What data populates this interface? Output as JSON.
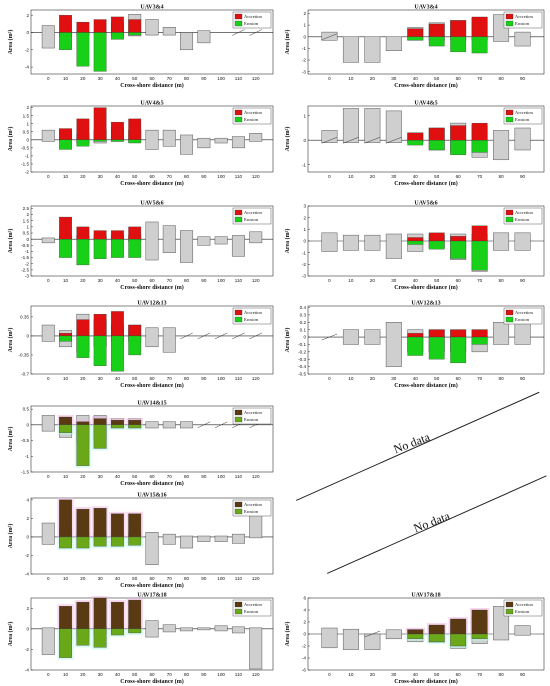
{
  "colors": {
    "accretion": "#e01010",
    "erosion": "#19d019",
    "accretion_dark": "#5a3a12",
    "erosion_dark": "#6aa81a",
    "gray_bar": "#cfcfcf",
    "edge": "#555555",
    "halo": "#f2b8e2",
    "halo2": "#b8f5e8"
  },
  "axis_labels": {
    "y": "Area (m²)",
    "x": "Cross-shore distance (m)"
  },
  "legend": {
    "accretion": "Accretion",
    "erosion": "Erosion"
  },
  "no_data": {
    "label": "No data"
  },
  "chart_data": [
    {
      "type": "bar",
      "title": "UAV3&4",
      "categories": [
        "0",
        "10",
        "20",
        "30",
        "40",
        "50",
        "60",
        "70",
        "80",
        "90",
        "100",
        "110",
        "120"
      ],
      "yticks": [
        -4,
        -2,
        0,
        2
      ],
      "ylim": [
        -4.8,
        2.6
      ],
      "legend_style": "bright",
      "gray": [
        [
          -1.8,
          0.8
        ],
        [
          -0.5,
          0.1
        ],
        [
          -0.3,
          0.2
        ],
        [
          -0.1,
          0.0
        ],
        [
          -0.4,
          1.1
        ],
        [
          -0.4,
          2.1
        ],
        [
          -0.3,
          1.5
        ],
        [
          -0.3,
          0.6
        ],
        [
          -2.0,
          0.0
        ],
        [
          -1.2,
          0.2
        ],
        null,
        null,
        null
      ],
      "accretion": [
        null,
        2.0,
        1.2,
        1.5,
        1.8,
        1.5,
        null,
        null,
        null,
        null,
        null,
        null,
        null
      ],
      "erosion": [
        null,
        -2.0,
        -3.9,
        -4.5,
        -0.8,
        -0.3,
        null,
        null,
        null,
        null,
        null,
        null,
        null
      ],
      "slashes": [
        11,
        12
      ]
    },
    {
      "type": "bar",
      "title": "UAV3&4",
      "categories": [
        "0",
        "10",
        "20",
        "30",
        "40",
        "50",
        "60",
        "70",
        "80",
        "90"
      ],
      "yticks": [
        -3,
        -2,
        -1,
        0,
        1,
        2
      ],
      "ylim": [
        -3.2,
        2.3
      ],
      "legend_style": "bright",
      "gray": [
        [
          -0.3,
          0.4
        ],
        [
          -2.2,
          0.0
        ],
        [
          -2.2,
          0.0
        ],
        [
          -1.2,
          0.0
        ],
        [
          -0.3,
          0.8
        ],
        [
          -0.3,
          1.2
        ],
        [
          -0.3,
          1.4
        ],
        [
          -0.3,
          1.6
        ],
        [
          -0.4,
          1.9
        ],
        [
          -0.8,
          0.4
        ]
      ],
      "accretion": [
        null,
        null,
        null,
        null,
        0.7,
        1.1,
        1.4,
        1.7,
        null,
        null
      ],
      "erosion": [
        null,
        null,
        null,
        null,
        -0.3,
        -0.8,
        -1.3,
        -1.4,
        null,
        null
      ],
      "slashes": [
        0
      ]
    },
    {
      "type": "bar",
      "title": "UAV4&5",
      "categories": [
        "0",
        "10",
        "20",
        "30",
        "40",
        "50",
        "60",
        "70",
        "80",
        "90",
        "100",
        "110",
        "120"
      ],
      "yticks": [
        -2,
        -1.5,
        -1,
        -0.5,
        0,
        0.5,
        1,
        1.5,
        2
      ],
      "ylim": [
        -2,
        2.1
      ],
      "legend_style": "bright",
      "gray": [
        [
          -0.1,
          0.6
        ],
        [
          -0.1,
          0.6
        ],
        [
          -0.2,
          0.4
        ],
        [
          -0.2,
          0.6
        ],
        [
          -0.1,
          0.8
        ],
        [
          -0.1,
          0.6
        ],
        [
          -0.6,
          0.6
        ],
        [
          -0.4,
          0.6
        ],
        [
          -0.9,
          0.3
        ],
        [
          -0.5,
          0.1
        ],
        [
          -0.2,
          0.1
        ],
        [
          -0.5,
          0.2
        ],
        [
          -0.1,
          0.4
        ]
      ],
      "accretion": [
        null,
        0.7,
        1.3,
        2.0,
        1.1,
        1.3,
        null,
        null,
        null,
        null,
        null,
        null,
        null
      ],
      "erosion": [
        null,
        -0.6,
        -0.4,
        -0.1,
        -0.1,
        -0.2,
        null,
        null,
        null,
        null,
        null,
        null,
        null
      ],
      "slashes": []
    },
    {
      "type": "bar",
      "title": "UAV4&5",
      "categories": [
        "0",
        "10",
        "20",
        "30",
        "40",
        "50",
        "60",
        "70",
        "80",
        "90"
      ],
      "yticks": [
        -1,
        0,
        1
      ],
      "ylim": [
        -1.3,
        1.4
      ],
      "legend_style": "bright",
      "gray": [
        [
          -0.1,
          0.4
        ],
        [
          -0.1,
          1.3
        ],
        [
          -0.1,
          1.3
        ],
        [
          -0.1,
          1.2
        ],
        [
          -0.1,
          0.3
        ],
        [
          -0.4,
          0.5
        ],
        [
          -0.5,
          0.7
        ],
        [
          -0.7,
          0.6
        ],
        [
          -0.8,
          0.4
        ],
        [
          -0.4,
          0.5
        ]
      ],
      "accretion": [
        null,
        null,
        null,
        null,
        0.3,
        0.5,
        0.6,
        0.7,
        null,
        null
      ],
      "erosion": [
        null,
        null,
        null,
        null,
        -0.2,
        -0.4,
        -0.6,
        -0.5,
        null,
        null
      ],
      "slashes": [
        0,
        1,
        2,
        3
      ]
    },
    {
      "type": "bar",
      "title": "UAV5&6",
      "categories": [
        "0",
        "10",
        "20",
        "30",
        "40",
        "50",
        "60",
        "70",
        "80",
        "90",
        "100",
        "110",
        "120"
      ],
      "yticks": [
        -3,
        -2.5,
        -2,
        -1.5,
        -1,
        -0.5,
        0,
        0.5,
        1,
        1.5,
        2,
        2.5
      ],
      "ylim": [
        -3,
        2.7
      ],
      "legend_style": "bright",
      "gray": [
        [
          -0.3,
          0.1
        ],
        [
          -0.1,
          0.3
        ],
        [
          -0.1,
          0.3
        ],
        [
          -0.1,
          0.3
        ],
        [
          -0.1,
          0.3
        ],
        [
          -0.2,
          0.3
        ],
        [
          -1.7,
          1.4
        ],
        [
          -1.1,
          1.1
        ],
        [
          -1.9,
          0.7
        ],
        [
          -0.5,
          0.2
        ],
        [
          -0.4,
          0.2
        ],
        [
          -1.4,
          0.3
        ],
        [
          -0.3,
          0.6
        ]
      ],
      "accretion": [
        null,
        1.8,
        1.0,
        0.7,
        0.7,
        1.0,
        null,
        null,
        null,
        null,
        null,
        null,
        null
      ],
      "erosion": [
        null,
        -1.5,
        -2.1,
        -1.6,
        -1.5,
        -1.5,
        null,
        null,
        null,
        null,
        null,
        null,
        null
      ],
      "slashes": []
    },
    {
      "type": "bar",
      "title": "UAV5&6",
      "categories": [
        "0",
        "10",
        "20",
        "30",
        "40",
        "50",
        "60",
        "70",
        "80",
        "90"
      ],
      "yticks": [
        -3,
        -2,
        -1,
        0,
        1,
        2,
        3
      ],
      "ylim": [
        -3,
        3
      ],
      "legend_style": "bright",
      "gray": [
        [
          -0.9,
          0.7
        ],
        [
          -0.8,
          0.5
        ],
        [
          -0.8,
          0.5
        ],
        [
          -1.5,
          0.6
        ],
        [
          -0.9,
          0.6
        ],
        [
          -0.6,
          0.5
        ],
        [
          -1.6,
          0.6
        ],
        [
          -2.6,
          0.6
        ],
        [
          -0.8,
          0.7
        ],
        [
          -0.8,
          0.7
        ]
      ],
      "accretion": [
        null,
        null,
        null,
        null,
        0.3,
        0.7,
        0.4,
        1.3,
        null,
        null
      ],
      "erosion": [
        null,
        null,
        null,
        null,
        -0.3,
        -0.7,
        -1.5,
        -2.5,
        null,
        null
      ],
      "slashes": []
    },
    {
      "type": "bar",
      "title": "UAV12&13",
      "categories": [
        "0",
        "10",
        "20",
        "30",
        "40",
        "50",
        "60",
        "70",
        "80",
        "90",
        "100",
        "110",
        "120"
      ],
      "yticks": [
        -0.7,
        -0.35,
        0,
        0.35
      ],
      "ylim": [
        -0.7,
        0.55
      ],
      "legend_style": "bright",
      "gray": [
        [
          -0.1,
          0.2
        ],
        [
          -0.2,
          0.1
        ],
        [
          -0.3,
          0.4
        ],
        [
          -0.2,
          0.3
        ],
        [
          -0.1,
          0.2
        ],
        [
          -0.1,
          0.2
        ],
        [
          -0.2,
          0.15
        ],
        [
          -0.3,
          0.15
        ],
        null,
        null,
        null,
        null,
        null
      ],
      "accretion": [
        null,
        0.05,
        0.3,
        0.4,
        0.45,
        0.2,
        null,
        null,
        null,
        null,
        null,
        null,
        null
      ],
      "erosion": [
        null,
        -0.1,
        -0.4,
        -0.55,
        -0.65,
        -0.35,
        null,
        null,
        null,
        null,
        null,
        null,
        null
      ],
      "slashes": [
        8,
        9,
        10,
        11,
        12
      ]
    },
    {
      "type": "bar",
      "title": "UAV12&13",
      "categories": [
        "0",
        "10",
        "20",
        "30",
        "40",
        "50",
        "60",
        "70",
        "80",
        "90"
      ],
      "yticks": [
        -0.5,
        -0.4,
        -0.3,
        -0.2,
        -0.1,
        0,
        0.1,
        0.2,
        0.3,
        0.4
      ],
      "ylim": [
        -0.5,
        0.42
      ],
      "legend_style": "bright",
      "gray": [
        null,
        [
          -0.1,
          0.1
        ],
        [
          -0.1,
          0.1
        ],
        [
          -0.4,
          0.2
        ],
        [
          -0.2,
          0.1
        ],
        [
          -0.2,
          0.1
        ],
        [
          -0.2,
          0.1
        ],
        [
          -0.2,
          0.1
        ],
        [
          -0.1,
          0.2
        ],
        [
          -0.1,
          0.2
        ]
      ],
      "accretion": [
        null,
        null,
        null,
        null,
        0.05,
        0.1,
        0.1,
        0.1,
        null,
        null
      ],
      "erosion": [
        null,
        null,
        null,
        null,
        -0.25,
        -0.3,
        -0.35,
        -0.1,
        null,
        null
      ],
      "slashes": [
        0
      ]
    },
    {
      "type": "bar",
      "title": "UAV14&15",
      "categories": [
        "0",
        "10",
        "20",
        "30",
        "40",
        "50",
        "60",
        "70",
        "80",
        "90",
        "100",
        "110",
        "120"
      ],
      "yticks": [
        -1.5,
        -1,
        -0.5,
        0,
        0.5
      ],
      "ylim": [
        -1.5,
        0.6
      ],
      "legend_style": "dark",
      "gray": [
        [
          -0.2,
          0.3
        ],
        [
          -0.4,
          0.2
        ],
        [
          -0.6,
          0.3
        ],
        [
          -0.5,
          0.3
        ],
        [
          -0.1,
          0.2
        ],
        [
          -0.1,
          0.2
        ],
        [
          -0.1,
          0.1
        ],
        [
          -0.1,
          0.1
        ],
        [
          -0.1,
          0.1
        ],
        null,
        null,
        null,
        null
      ],
      "accretion": [
        null,
        0.25,
        0.1,
        0.2,
        0.15,
        0.15,
        null,
        null,
        null,
        null,
        null,
        null,
        null
      ],
      "erosion": [
        null,
        -0.25,
        -1.3,
        -0.75,
        -0.1,
        -0.1,
        null,
        null,
        null,
        null,
        null,
        null,
        null
      ],
      "slashes": [
        9,
        10,
        11,
        12
      ]
    },
    {
      "type": "bar",
      "title": "UAV15&16",
      "categories": [
        "0",
        "10",
        "20",
        "30",
        "40",
        "50",
        "60",
        "70",
        "80",
        "90",
        "100",
        "110",
        "120"
      ],
      "yticks": [
        -4,
        -2,
        0,
        2,
        4
      ],
      "ylim": [
        -4,
        4.2
      ],
      "legend_style": "dark",
      "gray": [
        [
          -0.8,
          1.5
        ],
        [
          -0.6,
          1.0
        ],
        [
          -0.3,
          0.5
        ],
        [
          -0.3,
          0.5
        ],
        [
          -0.2,
          0.4
        ],
        [
          -0.2,
          0.4
        ],
        [
          -3.0,
          0.5
        ],
        [
          -0.8,
          0.3
        ],
        [
          -1.2,
          0.1
        ],
        [
          -0.5,
          0.1
        ],
        [
          -0.5,
          0.1
        ],
        [
          -0.7,
          0.3
        ],
        [
          -0.1,
          3.3
        ]
      ],
      "accretion": [
        null,
        4.0,
        3.0,
        3.1,
        2.5,
        2.5,
        null,
        null,
        null,
        null,
        null,
        null,
        null
      ],
      "erosion": [
        null,
        -1.2,
        -1.2,
        -1.0,
        -1.0,
        -0.9,
        null,
        null,
        null,
        null,
        null,
        null,
        null
      ],
      "slashes": []
    },
    {
      "type": "bar",
      "title": "UAV17&18",
      "categories": [
        "0",
        "10",
        "20",
        "30",
        "40",
        "50",
        "60",
        "70",
        "80",
        "90",
        "100",
        "110",
        "120"
      ],
      "yticks": [
        -4,
        -2,
        0,
        2
      ],
      "ylim": [
        -4,
        3
      ],
      "legend_style": "dark",
      "gray": [
        [
          -2.5,
          0.1
        ],
        [
          -1.0,
          0.3
        ],
        [
          -0.8,
          0.2
        ],
        [
          -0.5,
          0.3
        ],
        [
          -0.3,
          0.4
        ],
        [
          -0.3,
          0.3
        ],
        [
          -0.8,
          0.8
        ],
        [
          -0.3,
          0.4
        ],
        [
          -0.2,
          0.1
        ],
        [
          -0.1,
          0.1
        ],
        [
          -0.2,
          0.3
        ],
        [
          -0.4,
          0.2
        ],
        [
          -3.9,
          0.1
        ]
      ],
      "accretion": [
        null,
        2.2,
        2.6,
        3.0,
        2.6,
        2.8,
        null,
        null,
        null,
        null,
        null,
        null,
        null
      ],
      "erosion": [
        null,
        -2.8,
        -1.6,
        -1.8,
        -0.6,
        -0.4,
        null,
        null,
        null,
        null,
        null,
        null,
        null
      ],
      "slashes": []
    },
    {
      "type": "bar",
      "title": "UAV17&18",
      "categories": [
        "0",
        "10",
        "20",
        "30",
        "40",
        "50",
        "60",
        "70",
        "80",
        "90"
      ],
      "yticks": [
        -6,
        -4,
        -2,
        0,
        2,
        4,
        6
      ],
      "ylim": [
        -6,
        6
      ],
      "legend_style": "dark",
      "gray": [
        [
          -2.3,
          1.0
        ],
        [
          -2.6,
          0.8
        ],
        [
          -2.6,
          0.0
        ],
        [
          -0.8,
          0.7
        ],
        [
          -1.3,
          0.8
        ],
        [
          -1.4,
          1.3
        ],
        [
          -2.4,
          2.2
        ],
        [
          -1.6,
          3.0
        ],
        [
          -1.0,
          4.6
        ],
        [
          -0.2,
          1.4
        ]
      ],
      "accretion": [
        null,
        null,
        null,
        null,
        0.7,
        1.5,
        2.5,
        4.0,
        null,
        null
      ],
      "erosion": [
        null,
        null,
        null,
        null,
        -0.8,
        -1.3,
        -2.0,
        -0.8,
        null,
        null
      ],
      "slashes": [
        2
      ]
    }
  ]
}
